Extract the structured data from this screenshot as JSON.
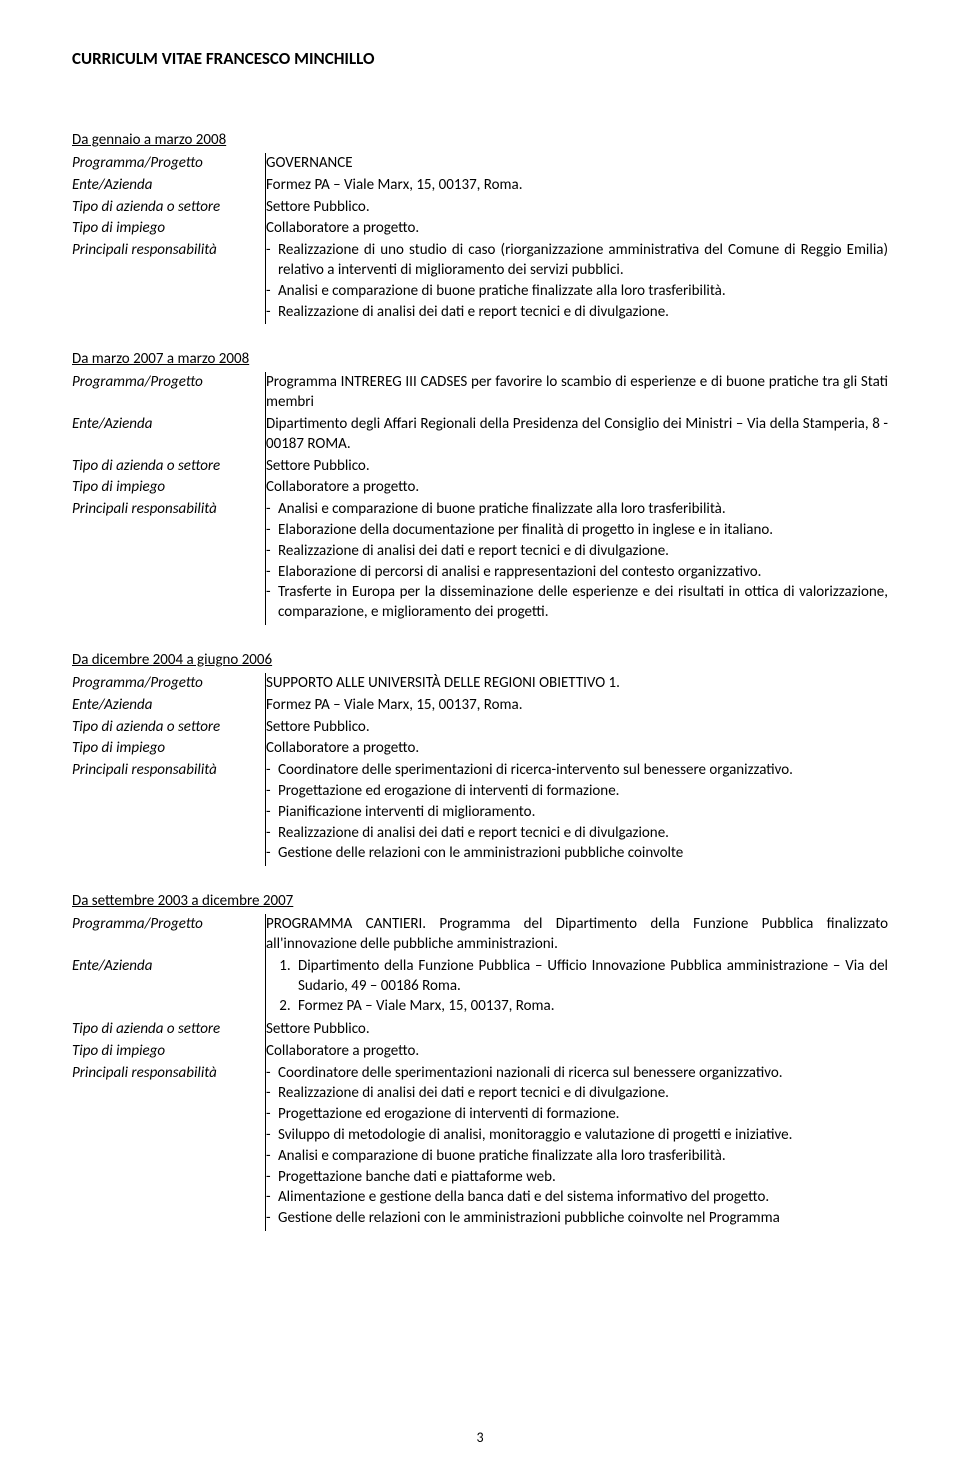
{
  "page": {
    "title": "CURRICULM VITAE FRANCESCO MINCHILLO",
    "number": "3"
  },
  "labels": {
    "programma": "Programma/Progetto",
    "ente": "Ente/Azienda",
    "settore": "Tipo di azienda o settore",
    "impiego": "Tipo di impiego",
    "responsabilita": "Principali responsabilità"
  },
  "sections": [
    {
      "date": "Da gennaio a marzo 2008",
      "programma": "GOVERNANCE",
      "ente": "Formez PA – Viale Marx, 15, 00137, Roma.",
      "settore": "Settore Pubblico.",
      "impiego": "Collaboratore a progetto.",
      "resp": [
        "Realizzazione di uno studio di caso (riorganizzazione amministrativa del Comune di Reggio Emilia) relativo a interventi di miglioramento dei servizi pubblici.",
        "Analisi e comparazione di buone pratiche finalizzate alla loro trasferibilità.",
        "Realizzazione di analisi dei dati e report tecnici e di divulgazione."
      ]
    },
    {
      "date": "Da marzo 2007 a marzo 2008",
      "programma": "Programma INTREREG III CADSES per favorire lo scambio di esperienze e di buone pratiche tra gli Stati membri",
      "ente": "Dipartimento degli Affari Regionali della Presidenza del Consiglio dei Ministri – Via della Stamperia, 8 - 00187 ROMA.",
      "settore": "Settore Pubblico.",
      "impiego": "Collaboratore a progetto.",
      "resp": [
        "Analisi e comparazione di buone pratiche finalizzate alla loro trasferibilità.",
        "Elaborazione della documentazione per finalità di progetto in inglese e in italiano.",
        "Realizzazione di analisi dei dati e report tecnici e di divulgazione.",
        "Elaborazione di percorsi di analisi e rappresentazioni del contesto organizzativo.",
        "Trasferte in Europa per la disseminazione delle esperienze e dei risultati in ottica di valorizzazione, comparazione, e miglioramento dei progetti."
      ]
    },
    {
      "date": "Da dicembre 2004 a giugno 2006",
      "programma": "SUPPORTO ALLE UNIVERSITÀ DELLE REGIONI OBIETTIVO 1.",
      "ente": "Formez PA – Viale Marx, 15, 00137, Roma.",
      "settore": "Settore Pubblico.",
      "impiego": "Collaboratore a progetto.",
      "resp": [
        "Coordinatore delle sperimentazioni di ricerca-intervento sul benessere organizzativo.",
        "Progettazione ed erogazione di interventi di formazione.",
        "Pianificazione interventi di miglioramento.",
        "Realizzazione di analisi dei dati e report tecnici e di divulgazione.",
        "Gestione delle relazioni con le amministrazioni pubbliche coinvolte"
      ]
    },
    {
      "date": "Da settembre 2003 a dicembre 2007",
      "programma": "PROGRAMMA CANTIERI. Programma del Dipartimento della Funzione Pubblica finalizzato all'innovazione delle pubbliche amministrazioni.",
      "ente_list": [
        "Dipartimento della Funzione Pubblica – Ufficio Innovazione Pubblica amministrazione – Via del Sudario, 49 – 00186 Roma.",
        "Formez PA – Viale Marx, 15, 00137, Roma."
      ],
      "settore": "Settore Pubblico.",
      "impiego": "Collaboratore a progetto.",
      "resp": [
        "Coordinatore delle sperimentazioni nazionali di ricerca sul benessere organizzativo.",
        "Realizzazione di analisi dei dati e report tecnici e di divulgazione.",
        "Progettazione ed erogazione di interventi di formazione.",
        "Sviluppo di metodologie di analisi, monitoraggio e valutazione di progetti e iniziative.",
        "Analisi e comparazione di buone pratiche finalizzate alla loro trasferibilità.",
        "Progettazione banche dati e piattaforme web.",
        "Alimentazione e gestione della banca dati e del sistema informativo del progetto.",
        "Gestione delle relazioni con le amministrazioni pubbliche coinvolte nel Programma"
      ]
    }
  ]
}
